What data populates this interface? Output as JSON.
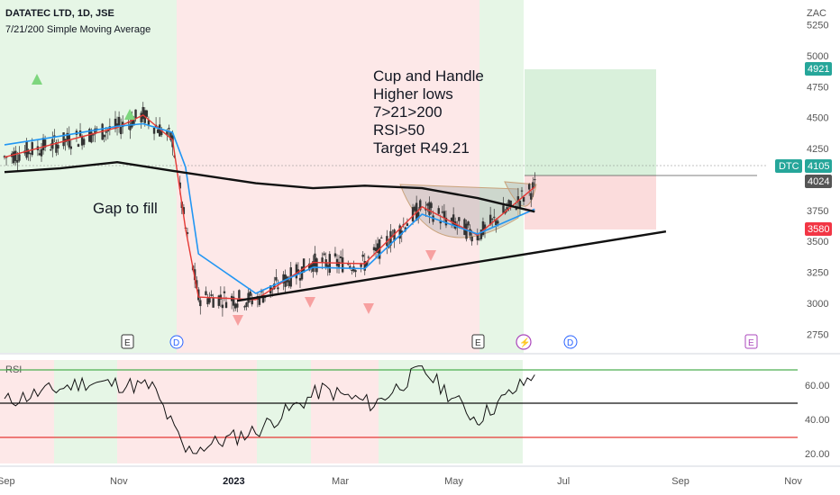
{
  "header": {
    "symbol_line": "DATATEC LTD, 1D, JSE",
    "indicator_line": "7/21/200 Simple Moving Average",
    "currency": "ZAC"
  },
  "annotations": {
    "cup_lines": [
      "Cup and Handle",
      "Higher lows",
      "7>21>200",
      "RSI>50",
      "Target R49.21"
    ],
    "gap_text": "Gap to fill"
  },
  "price_badges": {
    "target": "4921",
    "symbol": "DTC",
    "last": "4105",
    "entry": "4024",
    "stop": "3580"
  },
  "colors": {
    "bull_zone": "#e6f6e6",
    "bear_zone": "#fde8e8",
    "target_zone": "#d9f0db",
    "stop_zone": "#fbdcdc",
    "ma7": "#e53935",
    "ma21": "#2196f3",
    "ma200": "#111111",
    "green_badge": "#26a69a",
    "red_badge": "#f23645"
  },
  "rsi_panel": {
    "label": "RSI",
    "axis_ticks": [
      "60.00",
      "40.00",
      "20.00"
    ]
  },
  "events": [
    {
      "kind": "E",
      "label": "E"
    },
    {
      "kind": "D",
      "label": "D"
    },
    {
      "kind": "E",
      "label": "E"
    },
    {
      "kind": "split",
      "label": "⚡"
    },
    {
      "kind": "D",
      "label": "D"
    },
    {
      "kind": "E",
      "label": "E"
    }
  ],
  "chart_data": {
    "type": "line",
    "title": "DATATEC LTD, 1D, JSE",
    "ylabel": "ZAC",
    "ylim": [
      2600,
      5450
    ],
    "y_ticks": [
      5250,
      5000,
      4750,
      4500,
      4250,
      4000,
      3750,
      3500,
      3250,
      3000,
      2750
    ],
    "x_ticks": [
      "Sep",
      "Nov",
      "2023",
      "Mar",
      "May",
      "Jul",
      "Sep",
      "Nov"
    ],
    "series": [
      {
        "name": "7 SMA",
        "x": [
          "2022-09-01",
          "2022-10-01",
          "2022-11-01",
          "2022-11-15",
          "2022-12-01",
          "2022-12-08",
          "2022-12-15",
          "2023-01-15",
          "2023-02-15",
          "2023-03-15",
          "2023-04-15",
          "2023-05-15",
          "2023-06-15"
        ],
        "values": [
          4180,
          4300,
          4420,
          4520,
          4320,
          3600,
          3050,
          3030,
          3330,
          3320,
          3780,
          3550,
          3940
        ]
      },
      {
        "name": "21 SMA",
        "x": [
          "2022-09-01",
          "2022-10-01",
          "2022-11-01",
          "2022-11-15",
          "2022-12-01",
          "2022-12-08",
          "2022-12-15",
          "2023-01-15",
          "2023-02-15",
          "2023-03-15",
          "2023-04-15",
          "2023-05-15",
          "2023-06-15"
        ],
        "values": [
          4280,
          4350,
          4430,
          4450,
          4380,
          4100,
          3400,
          3080,
          3290,
          3280,
          3720,
          3560,
          3760
        ]
      },
      {
        "name": "200 SMA",
        "x": [
          "2022-09-01",
          "2022-10-01",
          "2022-11-01",
          "2022-12-01",
          "2023-01-15",
          "2023-02-15",
          "2023-03-15",
          "2023-04-15",
          "2023-05-15",
          "2023-06-15"
        ],
        "values": [
          4060,
          4090,
          4140,
          4070,
          3970,
          3930,
          3950,
          3930,
          3850,
          3740
        ]
      },
      {
        "name": "Uptrend line",
        "x": [
          "2023-01-05",
          "2023-08-25"
        ],
        "values": [
          3020,
          3580
        ]
      }
    ],
    "rsi": {
      "ylim": [
        10,
        80
      ],
      "levels": [
        70,
        50,
        30
      ],
      "x": [
        "2022-09-01",
        "2022-10-15",
        "2022-11-20",
        "2022-12-08",
        "2023-01-15",
        "2023-02-20",
        "2023-03-20",
        "2023-04-15",
        "2023-05-15",
        "2023-06-15"
      ],
      "values": [
        52,
        65,
        62,
        18,
        32,
        60,
        50,
        74,
        39,
        70
      ]
    },
    "trade": {
      "entry": 4024,
      "target": 4921,
      "stop": 3580,
      "last": 4105
    }
  }
}
